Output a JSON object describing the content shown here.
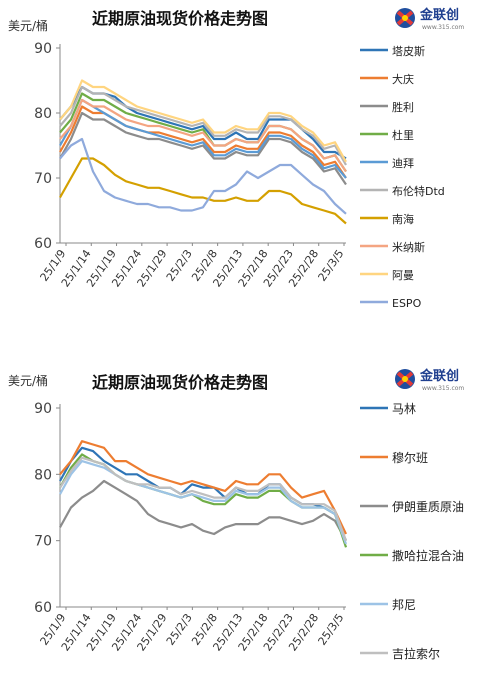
{
  "brand": "金联创",
  "brand_url": "www.315.com",
  "chart_data": [
    {
      "type": "line",
      "title": "近期原油现货价格走势图",
      "ylabel": "美元/桶",
      "ylim": [
        60,
        90
      ],
      "yticks": [
        60,
        70,
        80,
        90
      ],
      "x_tick_labels": [
        "25/1/9",
        "25/1/14",
        "25/1/19",
        "25/1/24",
        "25/1/29",
        "25/2/3",
        "25/2/8",
        "25/2/13",
        "25/2/18",
        "25/2/23",
        "25/2/28",
        "25/3/5"
      ],
      "grid": false,
      "legend_position": "right",
      "series": [
        {
          "name": "塔皮斯",
          "color": "#2e75b6",
          "values": [
            79,
            81,
            84,
            83,
            83,
            82.5,
            81,
            80,
            79.5,
            79,
            78.5,
            78,
            77.5,
            78,
            76,
            76,
            77,
            76,
            76,
            79,
            79,
            79,
            77.5,
            76,
            74,
            74,
            73
          ]
        },
        {
          "name": "大庆",
          "color": "#ed7d31",
          "values": [
            74,
            77,
            81,
            80,
            80,
            79,
            78,
            77.5,
            77,
            77,
            76.5,
            76,
            75.5,
            76,
            74,
            74,
            75,
            74.5,
            74.5,
            77,
            77,
            76.5,
            75,
            74,
            72,
            72.5,
            70
          ]
        },
        {
          "name": "胜利",
          "color": "#8c8c8c",
          "values": [
            73,
            76,
            80,
            79,
            79,
            78,
            77,
            76.5,
            76,
            76,
            75.5,
            75,
            74.5,
            75,
            73,
            73,
            74,
            73.5,
            73.5,
            76,
            76,
            75.5,
            74,
            73,
            71,
            71.5,
            69
          ]
        },
        {
          "name": "杜里",
          "color": "#70ad47",
          "values": [
            77,
            79,
            83,
            82,
            82,
            81,
            80,
            79.5,
            79,
            78.5,
            78,
            77.5,
            77,
            77.5,
            75,
            75,
            76,
            75.5,
            75.5,
            78,
            78,
            77.5,
            76,
            75,
            73,
            73.5,
            71
          ]
        },
        {
          "name": "迪拜",
          "color": "#5b9bd5",
          "values": [
            75,
            78,
            82,
            81,
            80,
            79,
            78,
            77.5,
            77,
            76.5,
            76,
            75.5,
            75,
            75.5,
            73.5,
            73.5,
            74.5,
            74,
            74,
            76.5,
            76.5,
            76,
            74.5,
            73.5,
            71.5,
            72,
            70
          ]
        },
        {
          "name": "布伦特Dtd",
          "color": "#b4b4b4",
          "values": [
            78,
            80,
            84,
            83,
            83,
            82,
            81,
            80.5,
            80,
            79.5,
            79,
            78.5,
            78,
            78.5,
            76.5,
            76.5,
            77.5,
            77,
            77,
            79.5,
            79.5,
            79,
            77.5,
            76.5,
            74.5,
            75,
            72
          ]
        },
        {
          "name": "南海",
          "color": "#d4a000",
          "values": [
            67,
            70,
            73,
            73,
            72,
            70.5,
            69.5,
            69,
            68.5,
            68.5,
            68,
            67.5,
            67,
            67,
            66.5,
            66.5,
            67,
            66.5,
            66.5,
            68,
            68,
            67.5,
            66,
            65.5,
            65,
            64.5,
            63
          ]
        },
        {
          "name": "米纳斯",
          "color": "#f4a582",
          "values": [
            76,
            78,
            82,
            81,
            81,
            80,
            79,
            78.5,
            78,
            78,
            77.5,
            77,
            76.5,
            77,
            75,
            75,
            76,
            75.5,
            75.5,
            78,
            78,
            77.5,
            76,
            75,
            73,
            73.5,
            71
          ]
        },
        {
          "name": "阿曼",
          "color": "#ffd580",
          "values": [
            79,
            81,
            85,
            84,
            84,
            83,
            82,
            81,
            80.5,
            80,
            79.5,
            79,
            78.5,
            79,
            77,
            77,
            78,
            77.5,
            77.5,
            80,
            80,
            79.5,
            78,
            77,
            75,
            75.5,
            72.5
          ]
        },
        {
          "name": "ESPO",
          "color": "#8faadc",
          "values": [
            73,
            75,
            76,
            71,
            68,
            67,
            66.5,
            66,
            66,
            65.5,
            65.5,
            65,
            65,
            65.5,
            68,
            68,
            69,
            71,
            70,
            71,
            72,
            72,
            70.5,
            69,
            68,
            66,
            64.5
          ]
        }
      ]
    },
    {
      "type": "line",
      "title": "近期原油现货价格走势图",
      "ylabel": "美元/桶",
      "ylim": [
        60,
        90
      ],
      "yticks": [
        60,
        70,
        80,
        90
      ],
      "x_tick_labels": [
        "25/1/9",
        "25/1/14",
        "25/1/19",
        "25/1/24",
        "25/1/29",
        "25/2/3",
        "25/2/8",
        "25/2/13",
        "25/2/18",
        "25/2/23",
        "25/2/28",
        "25/3/5"
      ],
      "grid": false,
      "legend_position": "right",
      "series": [
        {
          "name": "马林",
          "color": "#2e75b6",
          "values": [
            79,
            82,
            84,
            83.5,
            82,
            81,
            80,
            80,
            79,
            78,
            78,
            77,
            78.5,
            78,
            78,
            76.5,
            78,
            77,
            77,
            78.5,
            78.5,
            76.5,
            75.5,
            75.5,
            75,
            74,
            70
          ]
        },
        {
          "name": "穆尔班",
          "color": "#ed7d31",
          "values": [
            80,
            82,
            85,
            84.5,
            84,
            82,
            82,
            81,
            80,
            79.5,
            79,
            78.5,
            79,
            78.5,
            78,
            77.5,
            79,
            78.5,
            78.5,
            80,
            80,
            78,
            76.5,
            77,
            77.5,
            74.5,
            71
          ]
        },
        {
          "name": "伊朗重质原油",
          "color": "#8c8c8c",
          "values": [
            72,
            75,
            76.5,
            77.5,
            79,
            78,
            77,
            76,
            74,
            73,
            72.5,
            72,
            72.5,
            71.5,
            71,
            72,
            72.5,
            72.5,
            72.5,
            73.5,
            73.5,
            73,
            72.5,
            73,
            74,
            73,
            70
          ]
        },
        {
          "name": "撒哈拉混合油",
          "color": "#70ad47",
          "values": [
            78,
            81,
            83,
            82,
            81.5,
            80,
            79,
            78.5,
            78,
            77.5,
            77,
            76.5,
            77,
            76,
            75.5,
            75.5,
            77,
            76.5,
            76.5,
            77.5,
            77.5,
            76,
            75,
            75,
            75,
            74,
            69
          ]
        },
        {
          "name": "邦尼",
          "color": "#9dc3e6",
          "values": [
            77,
            80,
            82,
            81.5,
            81,
            80,
            79,
            78.5,
            78,
            77.5,
            77,
            76.5,
            77,
            76.5,
            76,
            76,
            77.5,
            77,
            77,
            78,
            78,
            76,
            75,
            75,
            75,
            74,
            69.5
          ]
        },
        {
          "name": "吉拉索尔",
          "color": "#bfbfbf",
          "values": [
            78,
            80.5,
            82.5,
            82,
            81.5,
            80,
            79,
            78.5,
            78.5,
            78,
            78,
            77,
            77.5,
            77,
            76.5,
            76.5,
            78,
            77.5,
            77.5,
            78.5,
            78.5,
            76.5,
            75.5,
            75.5,
            75.5,
            74.5,
            70
          ]
        }
      ]
    }
  ]
}
